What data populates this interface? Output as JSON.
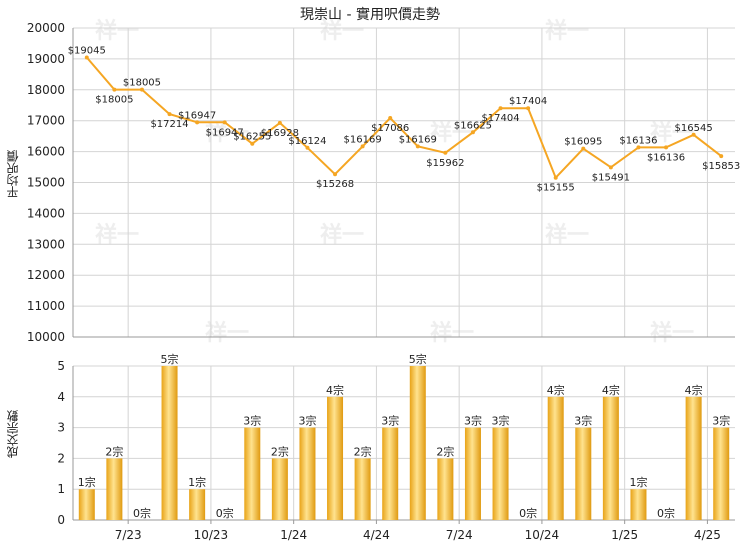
{
  "title": "現崇山 - 實用呎價走勢",
  "watermark": "祥一",
  "colors": {
    "line": "#f5a623",
    "bar_light": "#ffe08a",
    "bar_dark": "#e09a10",
    "grid": "#d4d4d4"
  },
  "chart_data": [
    {
      "type": "line",
      "ylabel": "平均呎價",
      "ylim": [
        10000,
        20000
      ],
      "yticks": [
        10000,
        11000,
        12000,
        13000,
        14000,
        15000,
        16000,
        17000,
        18000,
        19000,
        20000
      ],
      "values": [
        19045,
        18005,
        18005,
        17214,
        16947,
        16947,
        16255,
        16928,
        16124,
        15268,
        16169,
        17086,
        16169,
        15962,
        16625,
        17404,
        17404,
        15155,
        16095,
        15491,
        16136,
        16136,
        16545,
        15853
      ],
      "labels": [
        "$19045",
        "$18005",
        "$18005",
        "$17214",
        "$16947",
        "$16947",
        "$16255",
        "$16928",
        "$16124",
        "$15268",
        "$16169",
        "$17086",
        "$16169",
        "$15962",
        "$16625",
        "$17404",
        "$17404",
        "$15155",
        "$16095",
        "$15491",
        "$16136",
        "$16136",
        "$16545",
        "$15853"
      ],
      "markers": [
        true,
        true,
        true,
        true,
        true,
        true,
        true,
        true,
        true,
        true,
        true,
        true,
        true,
        true,
        true,
        true,
        true,
        true,
        true,
        true,
        true,
        true,
        true,
        true
      ]
    },
    {
      "type": "bar",
      "ylabel": "成交宗數",
      "ylim": [
        0,
        5
      ],
      "yticks": [
        0,
        1,
        2,
        3,
        4,
        5
      ],
      "values": [
        1,
        2,
        0,
        5,
        1,
        0,
        3,
        2,
        3,
        4,
        2,
        3,
        5,
        2,
        3,
        3,
        0,
        4,
        3,
        4,
        1,
        0,
        4,
        3
      ],
      "labels": [
        "1宗",
        "2宗",
        "0宗",
        "5宗",
        "1宗",
        "0宗",
        "3宗",
        "2宗",
        "3宗",
        "4宗",
        "2宗",
        "3宗",
        "5宗",
        "2宗",
        "3宗",
        "3宗",
        "0宗",
        "4宗",
        "3宗",
        "4宗",
        "1宗",
        "0宗",
        "4宗",
        "3宗"
      ],
      "x_tick_labels": [
        "7/23",
        "10/23",
        "1/24",
        "4/24",
        "7/24",
        "10/24",
        "1/25",
        "4/25"
      ]
    }
  ]
}
